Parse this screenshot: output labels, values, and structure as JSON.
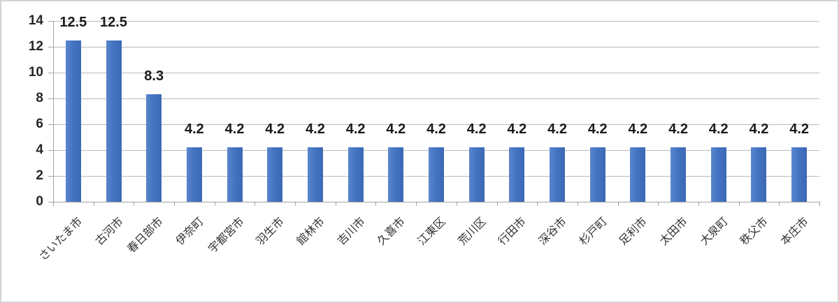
{
  "chart_data": {
    "type": "bar",
    "title": "",
    "xlabel": "",
    "ylabel": "",
    "categories": [
      "さいたま市",
      "古河市",
      "春日部市",
      "伊奈町",
      "宇都宮市",
      "羽生市",
      "館林市",
      "吉川市",
      "久喜市",
      "江東区",
      "荒川区",
      "行田市",
      "深谷市",
      "杉戸町",
      "足利市",
      "太田市",
      "大泉町",
      "秩父市",
      "本庄市"
    ],
    "values": [
      12.5,
      12.5,
      8.3,
      4.2,
      4.2,
      4.2,
      4.2,
      4.2,
      4.2,
      4.2,
      4.2,
      4.2,
      4.2,
      4.2,
      4.2,
      4.2,
      4.2,
      4.2,
      4.2
    ],
    "data_labels": [
      "12.5",
      "12.5",
      "8.3",
      "4.2",
      "4.2",
      "4.2",
      "4.2",
      "4.2",
      "4.2",
      "4.2",
      "4.2",
      "4.2",
      "4.2",
      "4.2",
      "4.2",
      "4.2",
      "4.2",
      "4.2",
      "4.2"
    ],
    "ylim": [
      0,
      14
    ],
    "yticks": [
      0,
      2,
      4,
      6,
      8,
      10,
      12,
      14
    ],
    "grid": true,
    "legend": "none",
    "colors": {
      "bar_light": "#5b86cd",
      "bar_mid": "#4473c2",
      "bar_dark": "#3c69b5",
      "gridline": "#b9b9b9",
      "axis": "#a3a3a3",
      "value_label_text": "#1a1a1a",
      "ytick_text": "#262626",
      "xtick_text": "#333333",
      "frame_border": "#d2d2d2",
      "background": "#ffffff"
    }
  }
}
